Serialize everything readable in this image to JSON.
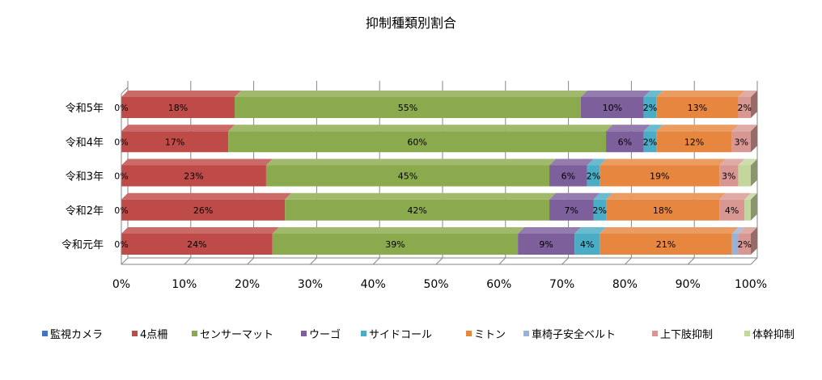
{
  "chart_data": {
    "type": "bar",
    "orientation": "horizontal",
    "stacked": "percent",
    "style": "3d",
    "title": "抑制種類別割合",
    "categories": [
      "令和5年",
      "令和4年",
      "令和3年",
      "令和2年",
      "令和元年"
    ],
    "xlim": [
      0,
      100
    ],
    "x_ticks": [
      "0%",
      "10%",
      "20%",
      "30%",
      "40%",
      "50%",
      "60%",
      "70%",
      "80%",
      "90%",
      "100%"
    ],
    "grid": true,
    "legend_position": "bottom",
    "series": [
      {
        "name": "監視カメラ",
        "color": "#4472C4",
        "values": [
          0,
          0,
          0,
          0,
          0
        ],
        "labels": [
          "0%",
          "0%",
          "0%",
          "0%",
          "0%"
        ]
      },
      {
        "name": "4点柵",
        "color": "#BE4B48",
        "values": [
          18,
          17,
          23,
          26,
          24
        ],
        "labels": [
          "18%",
          "17%",
          "23%",
          "26%",
          "24%"
        ]
      },
      {
        "name": "センサーマット",
        "color": "#8BAA4D",
        "values": [
          55,
          60,
          45,
          42,
          39
        ],
        "labels": [
          "55%",
          "60%",
          "45%",
          "42%",
          "39%"
        ]
      },
      {
        "name": "ウーゴ",
        "color": "#7D5F9C",
        "values": [
          10,
          6,
          6,
          7,
          9
        ],
        "labels": [
          "10%",
          "6%",
          "6%",
          "7%",
          "9%"
        ]
      },
      {
        "name": "サイドコール",
        "color": "#4BACC6",
        "values": [
          2,
          2,
          2,
          2,
          4
        ],
        "labels": [
          "2%",
          "2%",
          "2%",
          "2%",
          "4%"
        ]
      },
      {
        "name": "ミトン",
        "color": "#E7863E",
        "values": [
          13,
          12,
          19,
          18,
          21
        ],
        "labels": [
          "13%",
          "12%",
          "19%",
          "18%",
          "21%"
        ]
      },
      {
        "name": "車椅子安全ベルト",
        "color": "#97B3D8",
        "values": [
          0,
          0,
          0,
          0,
          1
        ],
        "labels": [
          "",
          "",
          "",
          "",
          ""
        ]
      },
      {
        "name": "上下肢抑制",
        "color": "#D99794",
        "values": [
          2,
          3,
          3,
          4,
          2
        ],
        "labels": [
          "2%",
          "3%",
          "3%",
          "4%",
          "2%"
        ]
      },
      {
        "name": "体幹抑制",
        "color": "#C3D69B",
        "values": [
          0,
          0,
          2,
          1,
          0
        ],
        "labels": [
          "",
          "",
          "",
          "",
          ""
        ]
      }
    ]
  }
}
